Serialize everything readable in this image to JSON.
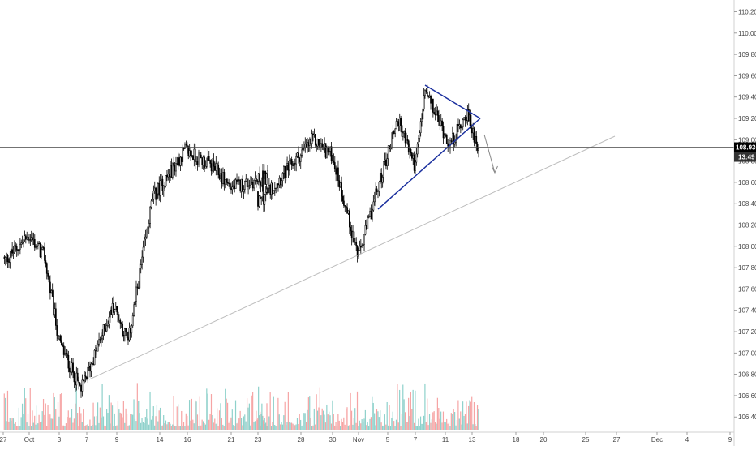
{
  "chart_data": {
    "type": "candlestick",
    "title": "",
    "xlabel": "",
    "ylabel": "",
    "ylim": [
      106.28,
      110.28
    ],
    "y_ticks": [
      "106.400",
      "106.600",
      "106.800",
      "107.000",
      "107.200",
      "107.400",
      "107.600",
      "107.800",
      "108.000",
      "108.200",
      "108.400",
      "108.600",
      "108.800",
      "109.000",
      "109.200",
      "109.400",
      "109.600",
      "109.800",
      "110.000",
      "110.200"
    ],
    "x_ticks": [
      "27",
      "Oct",
      "3",
      "7",
      "9",
      "14",
      "16",
      "21",
      "23",
      "28",
      "30",
      "Nov",
      "5",
      "7",
      "11",
      "13",
      "18",
      "20",
      "25",
      "27",
      "Dec",
      "4",
      "9"
    ],
    "last_price": "108.930",
    "countdown": "13:49",
    "grid": false,
    "series": {
      "start_close": 107.9,
      "waypoints": [
        {
          "x": "27",
          "y": 107.85
        },
        {
          "x": "Oct",
          "y": 108.1
        },
        {
          "x": "3",
          "y": 107.9
        },
        {
          "x": "3",
          "y": 107.1
        },
        {
          "x": "7",
          "y": 106.65
        },
        {
          "x": "9",
          "y": 107.45
        },
        {
          "x": "9",
          "y": 107.1
        },
        {
          "x": "14",
          "y": 108.45
        },
        {
          "x": "14",
          "y": 108.9
        },
        {
          "x": "16",
          "y": 108.75
        },
        {
          "x": "21",
          "y": 108.55
        },
        {
          "x": "23",
          "y": 108.65
        },
        {
          "x": "23",
          "y": 108.4
        },
        {
          "x": "28",
          "y": 109.0
        },
        {
          "x": "30",
          "y": 108.85
        },
        {
          "x": "Nov",
          "y": 107.9
        },
        {
          "x": "5",
          "y": 109.2
        },
        {
          "x": "7",
          "y": 108.75
        },
        {
          "x": "7",
          "y": 109.45
        },
        {
          "x": "11",
          "y": 108.95
        },
        {
          "x": "13",
          "y": 109.25
        },
        {
          "x": "13",
          "y": 108.93
        }
      ]
    },
    "annotations": [
      {
        "name": "rising-support-line",
        "color": "#bdbdbd",
        "from": {
          "x": "7",
          "y": 106.78
        },
        "to": {
          "x": "27",
          "y": 109.08
        }
      },
      {
        "name": "triangle-lower-line",
        "color": "#1a2f9e",
        "from": {
          "x": "5",
          "y": 108.36
        },
        "to": {
          "x": "13",
          "y": 109.18
        }
      },
      {
        "name": "triangle-upper-line",
        "color": "#1a2f9e",
        "from": {
          "x": "7",
          "y": 109.5
        },
        "to": {
          "x": "13",
          "y": 109.18
        }
      },
      {
        "name": "breakdown-arrow",
        "color": "#888888",
        "from": {
          "x": "13",
          "y": 109.05
        },
        "to": {
          "x": "18",
          "y": 108.7
        }
      }
    ]
  },
  "colors": {
    "up_candle": "#000000",
    "down_candle": "#000000",
    "volume_up": "#8ed1cb",
    "volume_down": "#f6a4a4",
    "price_line": "#444444",
    "price_badge_bg": "#000000",
    "countdown_bg": "#333333",
    "trend_line": "#1a2f9e",
    "support_line": "#bdbdbd"
  }
}
